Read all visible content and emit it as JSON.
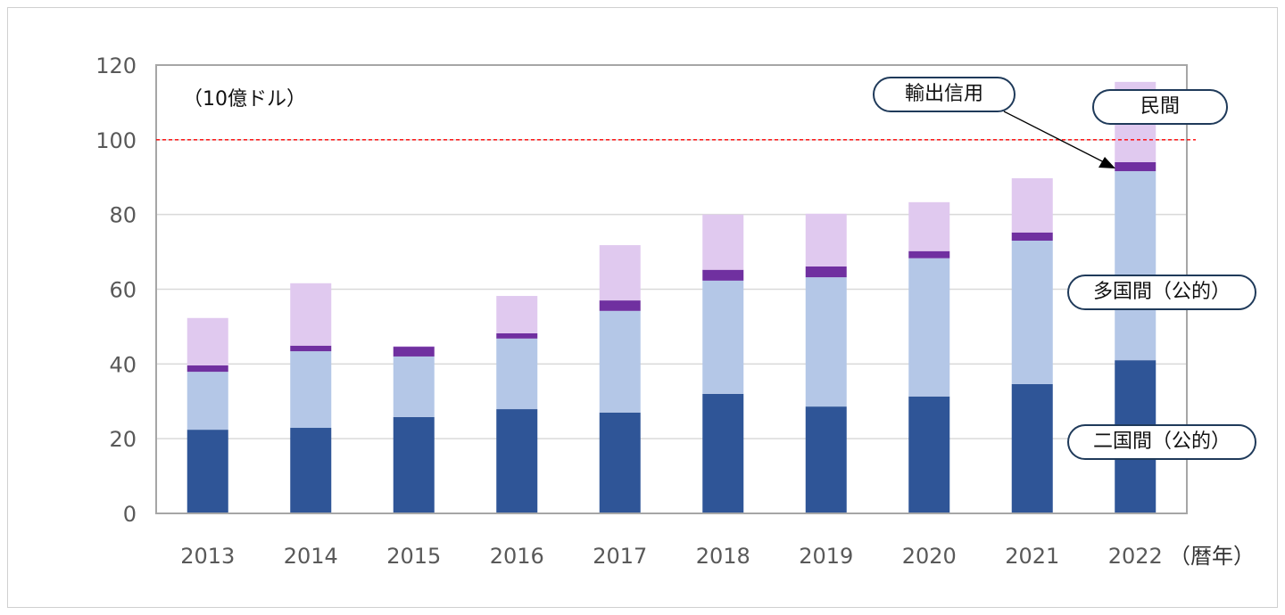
{
  "chart_data": {
    "type": "bar",
    "stacked": true,
    "unit_label": "（10億ドル）",
    "xlabel": "（暦年）",
    "categories": [
      "2013",
      "2014",
      "2015",
      "2016",
      "2017",
      "2018",
      "2019",
      "2020",
      "2021",
      "2022"
    ],
    "ylim": [
      0,
      120
    ],
    "yticks": [
      0,
      20,
      40,
      60,
      80,
      100,
      120
    ],
    "grid": true,
    "reference_line": {
      "value": 100,
      "color": "#ff0000",
      "style": "dashed"
    },
    "series": [
      {
        "name": "二国間（公的）",
        "color": "#2f5597",
        "values": [
          22.4,
          22.9,
          25.8,
          27.9,
          27.0,
          32.0,
          28.6,
          31.3,
          34.6,
          41.0
        ]
      },
      {
        "name": "多国間（公的）",
        "color": "#b4c7e7",
        "values": [
          15.5,
          20.5,
          16.2,
          18.9,
          27.2,
          30.3,
          34.6,
          37.0,
          38.4,
          50.6
        ]
      },
      {
        "name": "輸出信用",
        "color": "#7030a0",
        "values": [
          1.7,
          1.5,
          2.6,
          1.4,
          2.8,
          2.9,
          2.9,
          1.9,
          2.2,
          2.4
        ]
      },
      {
        "name": "民間",
        "color": "#e0c9ef",
        "values": [
          12.7,
          16.7,
          0.2,
          10.0,
          14.8,
          14.8,
          14.1,
          13.1,
          14.5,
          21.5
        ]
      }
    ],
    "annotations": [
      "輸出信用",
      "民間",
      "多国間（公的）",
      "二国間（公的）"
    ]
  }
}
